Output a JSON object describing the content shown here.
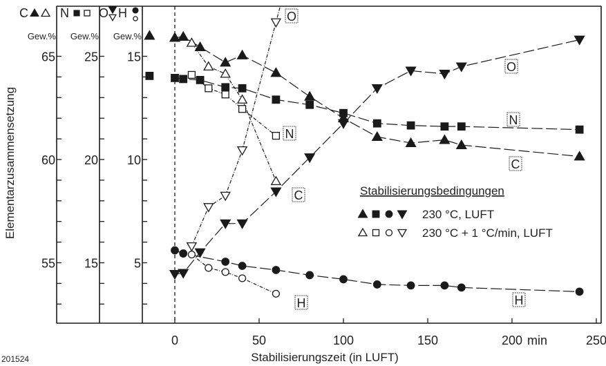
{
  "chart_data": {
    "type": "line",
    "xlabel": "Stabilisierungszeit (in LUFT)",
    "ylabel": "Elementarzusammensetzung",
    "x_ticks": [
      0,
      50,
      100,
      150,
      200,
      250
    ],
    "x_unit": "min",
    "xlim": [
      -22,
      252
    ],
    "figure_id": "201524",
    "axes": [
      {
        "element": "C",
        "unit": "Gew.%",
        "ticks": [
          65,
          60,
          55
        ],
        "ref": 60
      },
      {
        "element": "N",
        "unit": "Gew.%",
        "ticks": [
          25,
          20,
          15
        ],
        "ref": 20
      },
      {
        "element": "O",
        "element2": "H",
        "unit": "Gew.%",
        "ticks": [
          15,
          10,
          5
        ],
        "ref": 10
      }
    ],
    "legend": {
      "title": "Stabilisierungsbedingungen",
      "entries": [
        {
          "label": "230 °C, LUFT",
          "style": "filled"
        },
        {
          "label": "230 °C + 1 °C/min, LUFT",
          "style": "open"
        }
      ]
    },
    "series": [
      {
        "name": "C",
        "condition": "230 °C, LUFT",
        "axis": 0,
        "marker": "triangle-up",
        "filled": true,
        "points": [
          [
            -15,
            66.0
          ],
          [
            0,
            65.9
          ],
          [
            5,
            65.95
          ],
          [
            15,
            65.45
          ],
          [
            30,
            64.7
          ],
          [
            40,
            65.05
          ],
          [
            60,
            64.2
          ],
          [
            80,
            63.05
          ],
          [
            100,
            62.0
          ],
          [
            120,
            61.1
          ],
          [
            140,
            60.8
          ],
          [
            160,
            60.95
          ],
          [
            170,
            60.7
          ],
          [
            240,
            60.15
          ]
        ]
      },
      {
        "name": "C",
        "condition": "230 °C + 1 °C/min, LUFT",
        "axis": 0,
        "marker": "triangle-up",
        "filled": false,
        "points": [
          [
            10,
            65.65
          ],
          [
            20,
            64.5
          ],
          [
            30,
            64.15
          ],
          [
            40,
            62.9
          ],
          [
            60,
            58.95
          ]
        ]
      },
      {
        "name": "N",
        "condition": "230 °C, LUFT",
        "axis": 1,
        "marker": "square",
        "filled": true,
        "points": [
          [
            -15,
            24.05
          ],
          [
            0,
            23.95
          ],
          [
            5,
            23.9
          ],
          [
            15,
            23.85
          ],
          [
            30,
            23.5
          ],
          [
            40,
            23.45
          ],
          [
            60,
            22.9
          ],
          [
            80,
            22.65
          ],
          [
            100,
            22.25
          ],
          [
            120,
            21.75
          ],
          [
            140,
            21.65
          ],
          [
            160,
            21.6
          ],
          [
            170,
            21.6
          ],
          [
            240,
            21.45
          ]
        ]
      },
      {
        "name": "N",
        "condition": "230 °C + 1 °C/min, LUFT",
        "axis": 1,
        "marker": "square",
        "filled": false,
        "points": [
          [
            10,
            24.1
          ],
          [
            20,
            23.45
          ],
          [
            30,
            23.15
          ],
          [
            40,
            22.45
          ],
          [
            60,
            21.15
          ]
        ]
      },
      {
        "name": "O",
        "condition": "230 °C, LUFT",
        "axis": 2,
        "marker": "triangle-down",
        "filled": true,
        "points": [
          [
            0,
            4.45
          ],
          [
            5,
            4.5
          ],
          [
            15,
            5.5
          ],
          [
            30,
            6.9
          ],
          [
            40,
            6.9
          ],
          [
            60,
            8.45
          ],
          [
            80,
            10.1
          ],
          [
            100,
            11.75
          ],
          [
            120,
            13.45
          ],
          [
            140,
            14.3
          ],
          [
            160,
            14.15
          ],
          [
            170,
            14.5
          ],
          [
            240,
            15.8
          ]
        ]
      },
      {
        "name": "O",
        "condition": "230 °C + 1 °C/min, LUFT",
        "axis": 2,
        "marker": "triangle-down",
        "filled": false,
        "points": [
          [
            10,
            5.8
          ],
          [
            20,
            7.7
          ],
          [
            30,
            8.25
          ],
          [
            40,
            10.45
          ],
          [
            60,
            16.65
          ]
        ]
      },
      {
        "name": "H",
        "condition": "230 °C, LUFT",
        "axis": 2,
        "marker": "circle",
        "filled": true,
        "points": [
          [
            0,
            5.6
          ],
          [
            5,
            5.45
          ],
          [
            30,
            5.05
          ],
          [
            40,
            4.85
          ],
          [
            60,
            4.65
          ],
          [
            80,
            4.4
          ],
          [
            100,
            4.2
          ],
          [
            120,
            3.95
          ],
          [
            140,
            3.9
          ],
          [
            160,
            3.9
          ],
          [
            170,
            3.8
          ],
          [
            240,
            3.6
          ]
        ]
      },
      {
        "name": "H",
        "condition": "230 °C + 1 °C/min, LUFT",
        "axis": 2,
        "marker": "circle",
        "filled": false,
        "points": [
          [
            10,
            5.4
          ],
          [
            20,
            4.75
          ],
          [
            30,
            4.55
          ],
          [
            40,
            4.25
          ],
          [
            60,
            3.5
          ]
        ]
      }
    ],
    "curve_labels": [
      "O",
      "N",
      "C",
      "O",
      "N",
      "C",
      "H",
      "H"
    ],
    "colors": {
      "ink": "#1a1a1a",
      "background": "#ffffff"
    }
  }
}
